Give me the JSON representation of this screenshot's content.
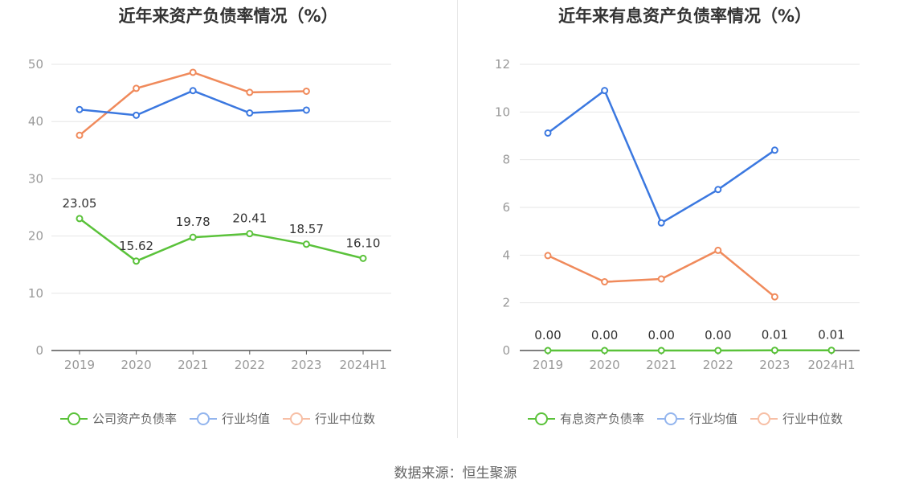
{
  "source": "数据来源：恒生聚源",
  "colors": {
    "company": "#5ac23a",
    "avg": "#3b78e0",
    "median": "#f08a5b"
  },
  "chart_data": [
    {
      "type": "line",
      "title": "近年来资产负债率情况（%）",
      "categories": [
        "2019",
        "2020",
        "2021",
        "2022",
        "2023",
        "2024H1"
      ],
      "ylim": [
        0,
        50
      ],
      "yticks": [
        0,
        10,
        20,
        30,
        40,
        50
      ],
      "legend_position": "bottom",
      "series": [
        {
          "name": "公司资产负债率",
          "key": "company",
          "values": [
            23.05,
            15.62,
            19.78,
            20.41,
            18.57,
            16.1
          ],
          "labels": [
            "23.05",
            "15.62",
            "19.78",
            "20.41",
            "18.57",
            "16.10"
          ]
        },
        {
          "name": "行业均值",
          "key": "avg",
          "values": [
            42.1,
            41.1,
            45.4,
            41.5,
            42.0,
            null
          ]
        },
        {
          "name": "行业中位数",
          "key": "median",
          "values": [
            37.6,
            45.8,
            48.6,
            45.1,
            45.3,
            null
          ]
        }
      ]
    },
    {
      "type": "line",
      "title": "近年来有息资产负债率情况（%）",
      "categories": [
        "2019",
        "2020",
        "2021",
        "2022",
        "2023",
        "2024H1"
      ],
      "ylim": [
        0,
        12
      ],
      "yticks": [
        0,
        2,
        4,
        6,
        8,
        10,
        12
      ],
      "legend_position": "bottom",
      "series": [
        {
          "name": "有息资产负债率",
          "key": "company",
          "values": [
            0.0,
            0.0,
            0.0,
            0.0,
            0.01,
            0.01
          ],
          "labels": [
            "0.00",
            "0.00",
            "0.00",
            "0.00",
            "0.01",
            "0.01"
          ]
        },
        {
          "name": "行业均值",
          "key": "avg",
          "values": [
            9.12,
            10.9,
            5.35,
            6.75,
            8.4,
            null
          ]
        },
        {
          "name": "行业中位数",
          "key": "median",
          "values": [
            3.98,
            2.88,
            3.0,
            4.2,
            2.25,
            null
          ]
        }
      ]
    }
  ]
}
